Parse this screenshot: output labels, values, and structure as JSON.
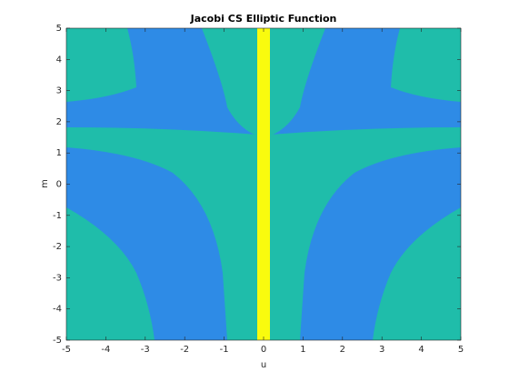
{
  "chart_data": {
    "type": "contour",
    "title": "Jacobi CS Elliptic Function",
    "xlabel": "u",
    "ylabel": "m",
    "xlim": [
      -5,
      5
    ],
    "ylim": [
      -5,
      5
    ],
    "xticks": [
      -5,
      -4,
      -3,
      -2,
      -1,
      0,
      1,
      2,
      3,
      4,
      5
    ],
    "yticks": [
      -5,
      -4,
      -3,
      -2,
      -1,
      0,
      1,
      2,
      3,
      4,
      5
    ]
  }
}
